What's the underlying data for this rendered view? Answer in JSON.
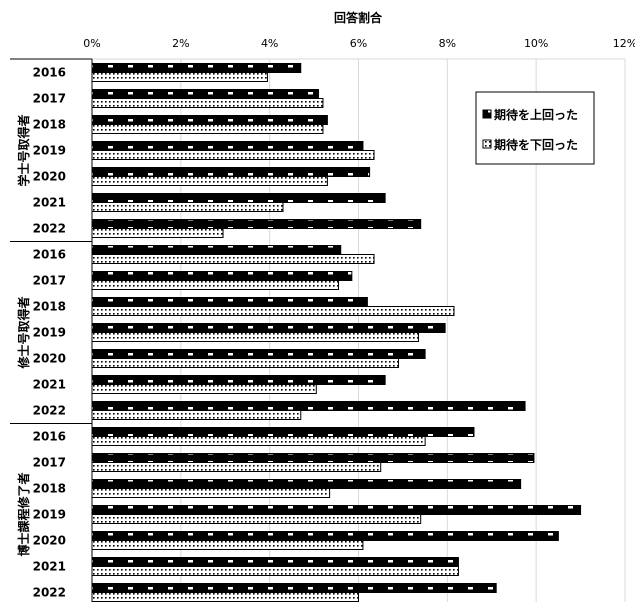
{
  "chart_data": {
    "type": "bar",
    "orientation": "horizontal",
    "title": "",
    "xlabel": "回答割合",
    "ylabel": "",
    "xlim": [
      0,
      12
    ],
    "x_ticks": [
      "0%",
      "2%",
      "4%",
      "6%",
      "8%",
      "10%",
      "12%"
    ],
    "grid": true,
    "legend_position": "right",
    "groups": [
      {
        "label": "学士号取得者",
        "categories": [
          "2016",
          "2017",
          "2018",
          "2019",
          "2020",
          "2021",
          "2022"
        ]
      },
      {
        "label": "修士号取得者",
        "categories": [
          "2016",
          "2017",
          "2018",
          "2019",
          "2020",
          "2021",
          "2022"
        ]
      },
      {
        "label": "博士課程修了者",
        "categories": [
          "2016",
          "2017",
          "2018",
          "2019",
          "2020",
          "2021",
          "2022"
        ]
      }
    ],
    "series": [
      {
        "name": "期待を上回った",
        "color": "#000000",
        "values": [
          4.7,
          5.1,
          5.3,
          6.1,
          6.25,
          6.6,
          7.4,
          5.6,
          5.85,
          6.2,
          7.95,
          7.5,
          6.6,
          9.75,
          8.6,
          9.95,
          9.65,
          11.0,
          10.5,
          8.25,
          9.1
        ]
      },
      {
        "name": "期待を下回った",
        "color": "#ffffff",
        "values": [
          3.95,
          5.2,
          5.2,
          6.35,
          5.3,
          4.3,
          2.95,
          6.35,
          5.55,
          8.15,
          7.35,
          6.9,
          5.05,
          4.7,
          7.5,
          6.5,
          5.35,
          7.4,
          6.1,
          8.25,
          6.0
        ]
      }
    ]
  }
}
